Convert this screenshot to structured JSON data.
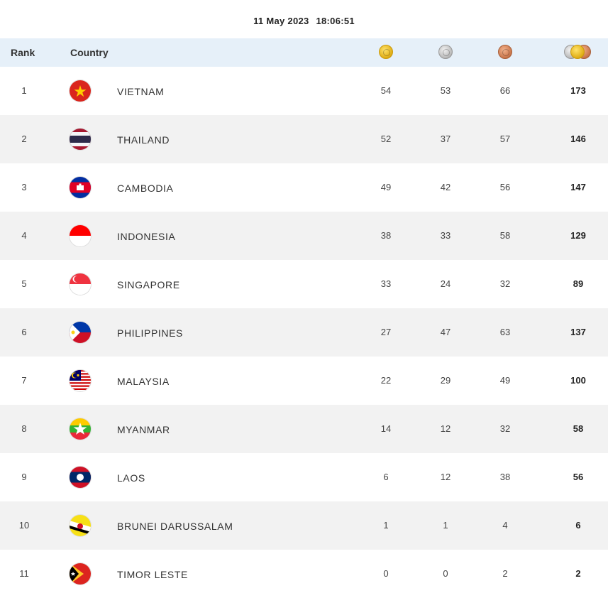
{
  "timestamp": {
    "date": "11 May 2023",
    "time": "18:06:51"
  },
  "header": {
    "rank": "Rank",
    "country": "Country",
    "medal_icons": [
      "gold-medal-icon",
      "silver-medal-icon",
      "bronze-medal-icon",
      "total-medals-icon"
    ]
  },
  "colors": {
    "header_bg": "#e6f0f9",
    "stripe_bg": "#f2f2f2",
    "gold": "#e0ad14",
    "silver": "#b8b8b8",
    "bronze": "#c9754a"
  },
  "rows": [
    {
      "rank": "1",
      "country": "VIETNAM",
      "flag": "vietnam-flag-icon",
      "gold": "54",
      "silver": "53",
      "bronze": "66",
      "total": "173"
    },
    {
      "rank": "2",
      "country": "THAILAND",
      "flag": "thailand-flag-icon",
      "gold": "52",
      "silver": "37",
      "bronze": "57",
      "total": "146"
    },
    {
      "rank": "3",
      "country": "CAMBODIA",
      "flag": "cambodia-flag-icon",
      "gold": "49",
      "silver": "42",
      "bronze": "56",
      "total": "147"
    },
    {
      "rank": "4",
      "country": "INDONESIA",
      "flag": "indonesia-flag-icon",
      "gold": "38",
      "silver": "33",
      "bronze": "58",
      "total": "129"
    },
    {
      "rank": "5",
      "country": "SINGAPORE",
      "flag": "singapore-flag-icon",
      "gold": "33",
      "silver": "24",
      "bronze": "32",
      "total": "89"
    },
    {
      "rank": "6",
      "country": "PHILIPPINES",
      "flag": "philippines-flag-icon",
      "gold": "27",
      "silver": "47",
      "bronze": "63",
      "total": "137"
    },
    {
      "rank": "7",
      "country": "MALAYSIA",
      "flag": "malaysia-flag-icon",
      "gold": "22",
      "silver": "29",
      "bronze": "49",
      "total": "100"
    },
    {
      "rank": "8",
      "country": "MYANMAR",
      "flag": "myanmar-flag-icon",
      "gold": "14",
      "silver": "12",
      "bronze": "32",
      "total": "58"
    },
    {
      "rank": "9",
      "country": "LAOS",
      "flag": "laos-flag-icon",
      "gold": "6",
      "silver": "12",
      "bronze": "38",
      "total": "56"
    },
    {
      "rank": "10",
      "country": "BRUNEI DARUSSALAM",
      "flag": "brunei-flag-icon",
      "gold": "1",
      "silver": "1",
      "bronze": "4",
      "total": "6"
    },
    {
      "rank": "11",
      "country": "TIMOR LESTE",
      "flag": "timor-leste-flag-icon",
      "gold": "0",
      "silver": "0",
      "bronze": "2",
      "total": "2"
    }
  ]
}
